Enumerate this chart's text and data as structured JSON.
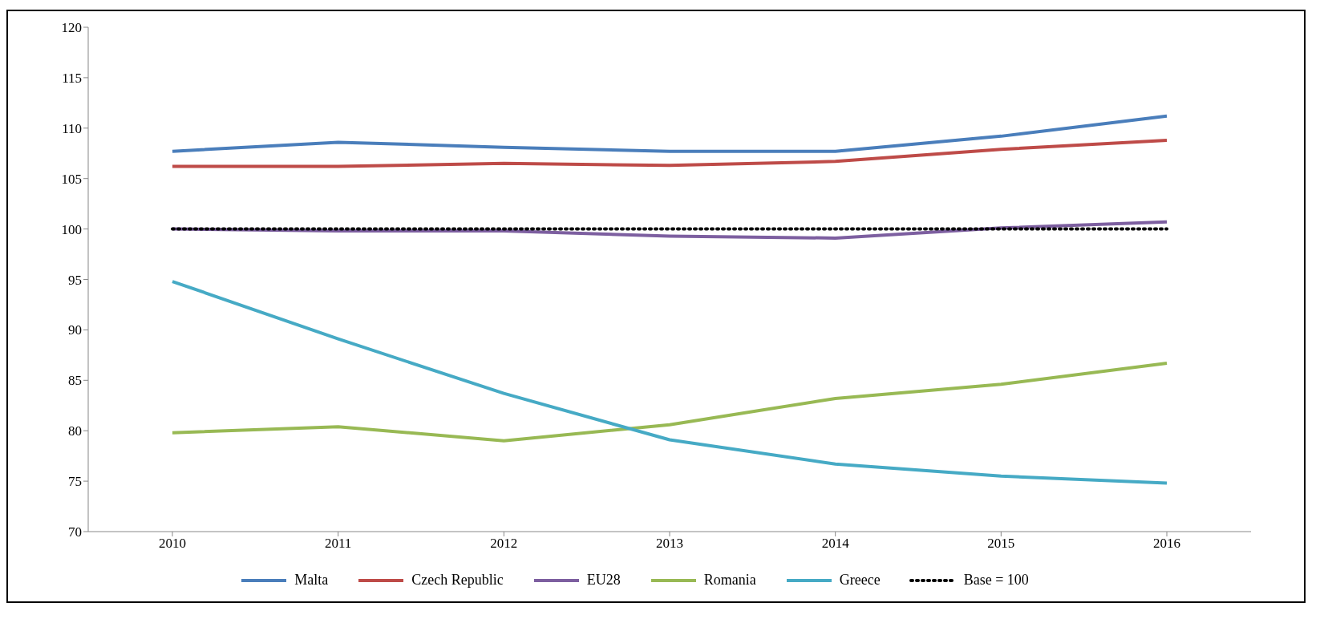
{
  "chart_data": {
    "type": "line",
    "categories": [
      "2010",
      "2011",
      "2012",
      "2013",
      "2014",
      "2015",
      "2016"
    ],
    "series": [
      {
        "name": "Malta",
        "color": "#4a7ebb",
        "values": [
          107.7,
          108.6,
          108.1,
          107.7,
          107.7,
          109.2,
          111.2
        ]
      },
      {
        "name": "Czech Republic",
        "color": "#be4b48",
        "values": [
          106.2,
          106.2,
          106.5,
          106.3,
          106.7,
          107.9,
          108.8
        ]
      },
      {
        "name": "EU28",
        "color": "#7d5fa0",
        "values": [
          100,
          99.8,
          99.8,
          99.3,
          99.1,
          100.1,
          100.7
        ]
      },
      {
        "name": "Romania",
        "color": "#98b954",
        "values": [
          79.8,
          80.4,
          79.0,
          80.6,
          83.2,
          84.6,
          86.7
        ]
      },
      {
        "name": "Greece",
        "color": "#46aac5",
        "values": [
          94.8,
          89.1,
          83.7,
          79.1,
          76.7,
          75.5,
          74.8
        ]
      },
      {
        "name": "Base = 100",
        "color": "#000000",
        "line_style": "dotted",
        "values": [
          100,
          100,
          100,
          100,
          100,
          100,
          100
        ]
      }
    ],
    "ylim": [
      70,
      120
    ],
    "yticks": [
      70,
      75,
      80,
      85,
      90,
      95,
      100,
      105,
      110,
      115,
      120
    ],
    "legend": "bottom",
    "marker": "none",
    "line_style": "solid"
  }
}
